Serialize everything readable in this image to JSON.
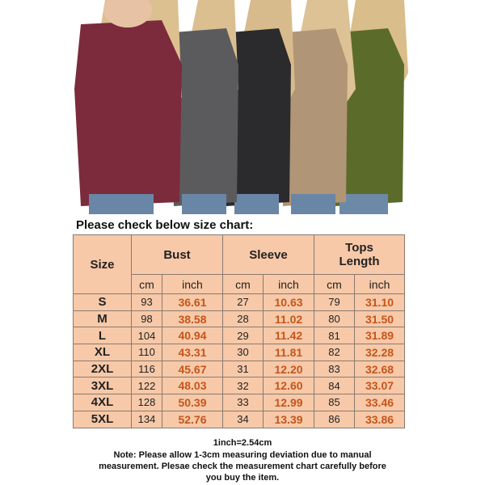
{
  "heading": "Please check below size chart:",
  "table": {
    "headers": {
      "size": "Size",
      "bust": "Bust",
      "sleeve": "Sleeve",
      "length": "Tops Length",
      "units": [
        "cm",
        "inch",
        "cm",
        "inch",
        "cm",
        "inch"
      ]
    },
    "rows": [
      [
        "S",
        "93",
        "36.61",
        "27",
        "10.63",
        "79",
        "31.10"
      ],
      [
        "M",
        "98",
        "38.58",
        "28",
        "11.02",
        "80",
        "31.50"
      ],
      [
        "L",
        "104",
        "40.94",
        "29",
        "11.42",
        "81",
        "31.89"
      ],
      [
        "XL",
        "110",
        "43.31",
        "30",
        "11.81",
        "82",
        "32.28"
      ],
      [
        "2XL",
        "116",
        "45.67",
        "31",
        "12.20",
        "83",
        "32.68"
      ],
      [
        "3XL",
        "122",
        "48.03",
        "32",
        "12.60",
        "84",
        "33.07"
      ],
      [
        "4XL",
        "128",
        "50.39",
        "33",
        "12.99",
        "85",
        "33.46"
      ],
      [
        "5XL",
        "134",
        "52.76",
        "34",
        "13.39",
        "86",
        "33.86"
      ]
    ]
  },
  "footer": {
    "conversion": "1inch=2.54cm",
    "note": [
      "Note: Please allow 1-3cm measuring deviation due to manual",
      "measurement. Plesae check the measurement chart carefully before",
      "you buy the item."
    ]
  }
}
